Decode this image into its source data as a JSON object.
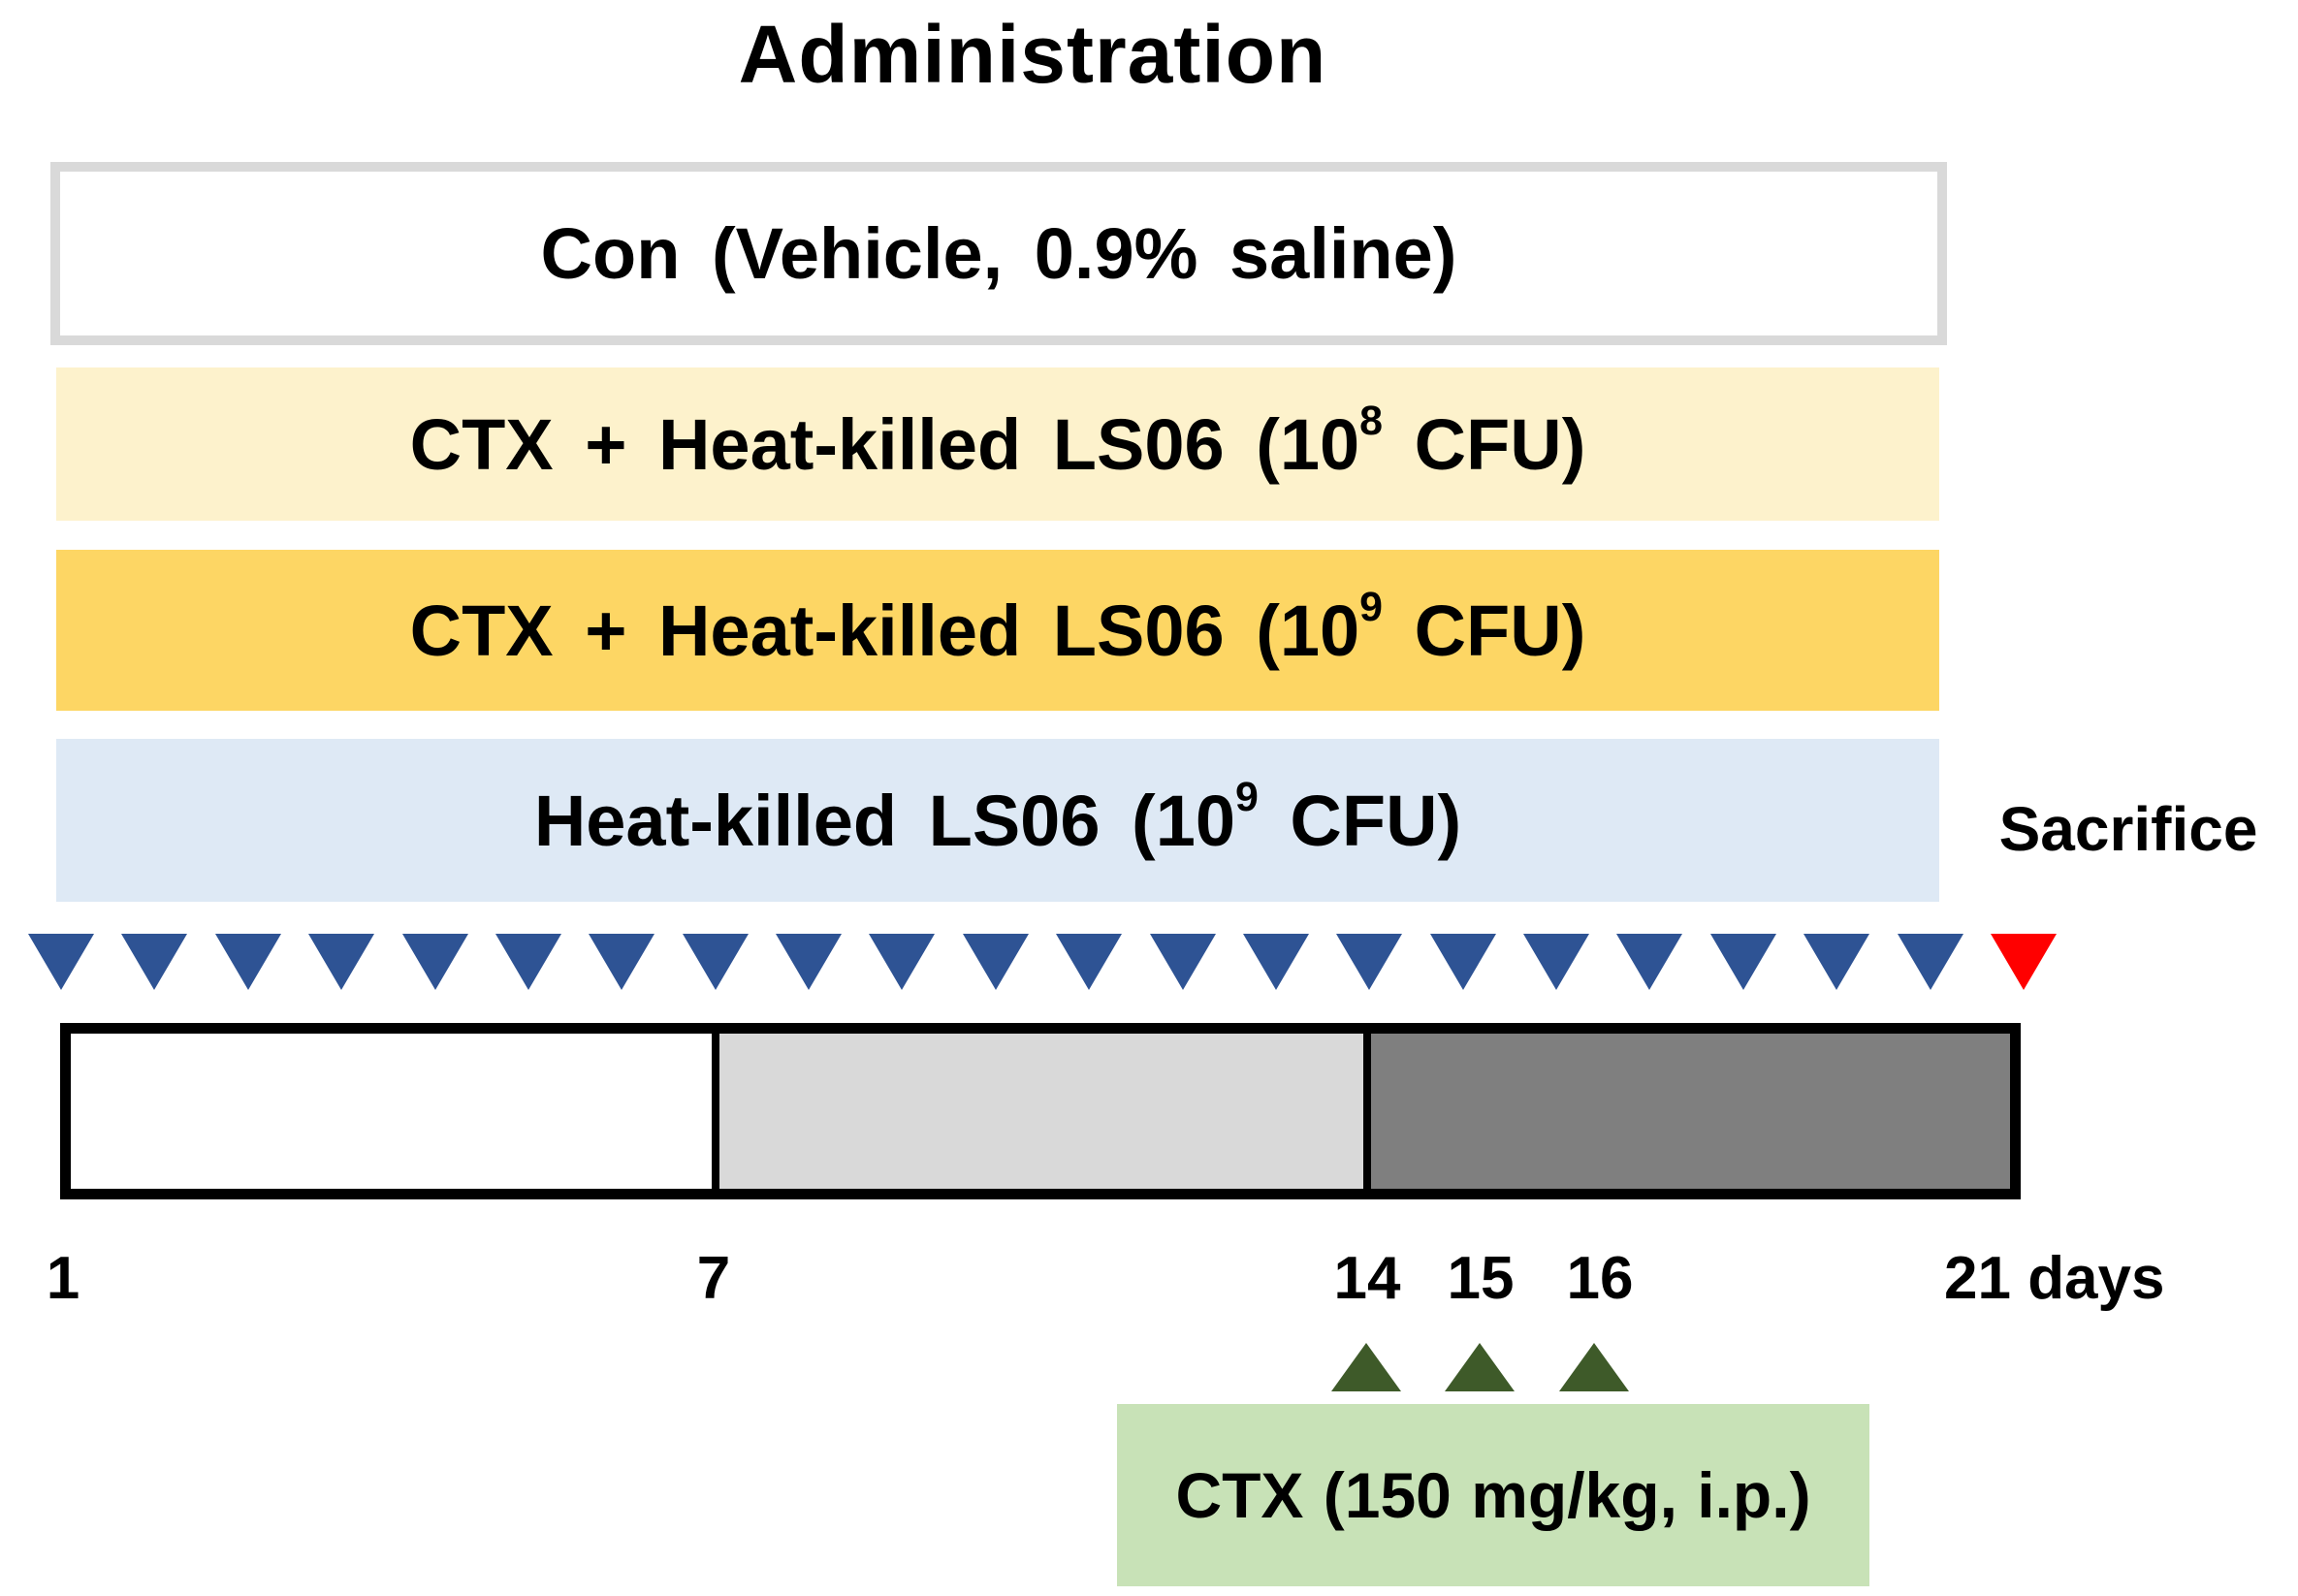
{
  "title": "Administration",
  "groups": [
    {
      "name": "control",
      "label_pre": "Con (Vehicle, 0.9% saline)",
      "exp": "",
      "label_post": "",
      "fill": "#FFFFFF",
      "border": "#D9D9D9"
    },
    {
      "name": "ctx-heat-killed-ls06-1e8",
      "label_pre": "CTX + Heat-killed LS06 (10",
      "exp": "8",
      "label_post": " CFU)",
      "fill": "#FDF2CC"
    },
    {
      "name": "ctx-heat-killed-ls06-1e9",
      "label_pre": "CTX + Heat-killed LS06 (10",
      "exp": "9",
      "label_post": " CFU)",
      "fill": "#FDD664"
    },
    {
      "name": "heat-killed-ls06-1e9",
      "label_pre": "Heat-killed LS06 (10",
      "exp": "9",
      "label_post": " CFU)",
      "fill": "#DEE9F5"
    }
  ],
  "sacrifice": {
    "label": "Sacrifice",
    "marker_color": "#FF0000"
  },
  "administration_markers": {
    "daily_count": 21,
    "daily_color": "#2E5394"
  },
  "timeline": {
    "phases": [
      {
        "days": "1-7",
        "fill": "#FFFFFF"
      },
      {
        "days": "7-14",
        "fill": "#D9D9D9"
      },
      {
        "days": "14-21",
        "fill": "#7F7F7F"
      }
    ],
    "day_labels": [
      "1",
      "7",
      "14",
      "15",
      "16",
      "21 days"
    ]
  },
  "ctx_injection": {
    "label": "CTX (150 mg/kg, i.p.)",
    "days": [
      "14",
      "15",
      "16"
    ],
    "marker_color": "#3E5A29",
    "box_fill": "#C8E2B7"
  }
}
